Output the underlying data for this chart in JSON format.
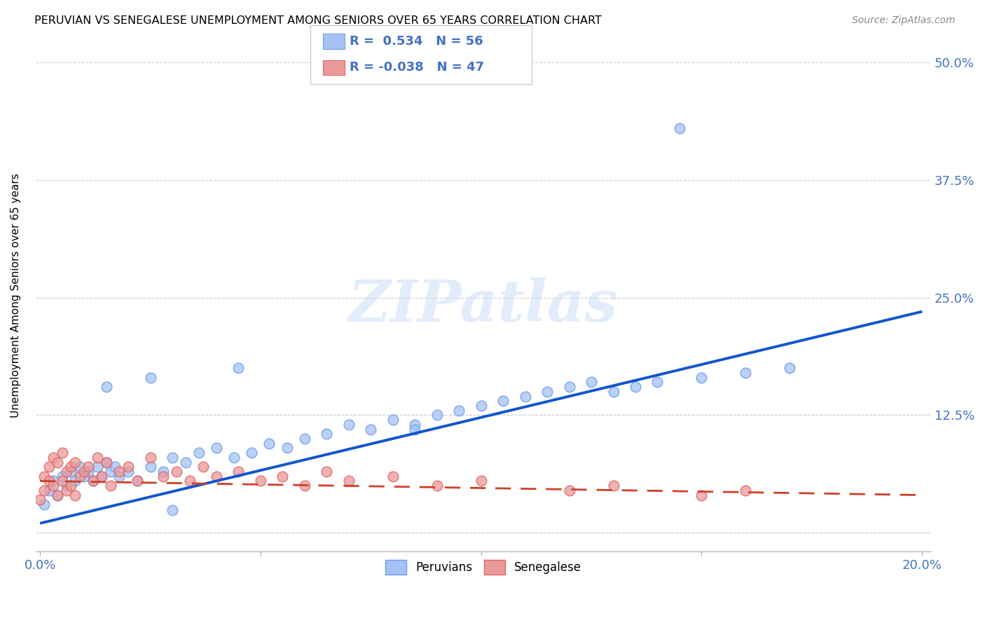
{
  "title": "PERUVIAN VS SENEGALESE UNEMPLOYMENT AMONG SENIORS OVER 65 YEARS CORRELATION CHART",
  "source": "Source: ZipAtlas.com",
  "tick_color": "#4472c4",
  "ylabel": "Unemployment Among Seniors over 65 years",
  "xlim": [
    -0.001,
    0.202
  ],
  "ylim": [
    -0.02,
    0.525
  ],
  "x_ticks": [
    0.0,
    0.05,
    0.1,
    0.15,
    0.2
  ],
  "x_tick_labels": [
    "0.0%",
    "",
    "",
    "",
    "20.0%"
  ],
  "y_ticks": [
    0.0,
    0.125,
    0.25,
    0.375,
    0.5
  ],
  "y_tick_labels": [
    "",
    "12.5%",
    "25.0%",
    "37.5%",
    "50.0%"
  ],
  "peruvian_color": "#a4c2f4",
  "peruvian_edge_color": "#6d9eeb",
  "senegalese_color": "#ea9999",
  "senegalese_edge_color": "#e06666",
  "peruvian_line_color": "#1155cc",
  "senegalese_line_color": "#cc4125",
  "R_peruvian": 0.534,
  "N_peruvian": 56,
  "R_senegalese": -0.038,
  "N_senegalese": 47,
  "watermark": "ZIPatlas",
  "peruvian_x": [
    0.001,
    0.002,
    0.003,
    0.004,
    0.005,
    0.006,
    0.007,
    0.008,
    0.009,
    0.01,
    0.011,
    0.012,
    0.013,
    0.014,
    0.015,
    0.016,
    0.017,
    0.018,
    0.02,
    0.022,
    0.025,
    0.028,
    0.03,
    0.033,
    0.036,
    0.04,
    0.044,
    0.048,
    0.052,
    0.056,
    0.06,
    0.065,
    0.07,
    0.075,
    0.08,
    0.085,
    0.09,
    0.095,
    0.1,
    0.105,
    0.11,
    0.115,
    0.12,
    0.125,
    0.13,
    0.135,
    0.14,
    0.15,
    0.16,
    0.17,
    0.015,
    0.025,
    0.03,
    0.045,
    0.085,
    0.145
  ],
  "peruvian_y": [
    0.03,
    0.045,
    0.055,
    0.04,
    0.06,
    0.05,
    0.065,
    0.055,
    0.07,
    0.06,
    0.065,
    0.055,
    0.07,
    0.06,
    0.075,
    0.065,
    0.07,
    0.06,
    0.065,
    0.055,
    0.07,
    0.065,
    0.08,
    0.075,
    0.085,
    0.09,
    0.08,
    0.085,
    0.095,
    0.09,
    0.1,
    0.105,
    0.115,
    0.11,
    0.12,
    0.115,
    0.125,
    0.13,
    0.135,
    0.14,
    0.145,
    0.15,
    0.155,
    0.16,
    0.15,
    0.155,
    0.16,
    0.165,
    0.17,
    0.175,
    0.155,
    0.165,
    0.024,
    0.175,
    0.11,
    0.43
  ],
  "senegalese_x": [
    0.0,
    0.001,
    0.001,
    0.002,
    0.002,
    0.003,
    0.003,
    0.004,
    0.004,
    0.005,
    0.005,
    0.006,
    0.006,
    0.007,
    0.007,
    0.008,
    0.008,
    0.009,
    0.01,
    0.011,
    0.012,
    0.013,
    0.014,
    0.015,
    0.016,
    0.018,
    0.02,
    0.022,
    0.025,
    0.028,
    0.031,
    0.034,
    0.037,
    0.04,
    0.045,
    0.05,
    0.055,
    0.06,
    0.065,
    0.07,
    0.08,
    0.09,
    0.1,
    0.12,
    0.13,
    0.15,
    0.16
  ],
  "senegalese_y": [
    0.035,
    0.06,
    0.045,
    0.07,
    0.055,
    0.08,
    0.05,
    0.075,
    0.04,
    0.085,
    0.055,
    0.065,
    0.045,
    0.07,
    0.05,
    0.075,
    0.04,
    0.06,
    0.065,
    0.07,
    0.055,
    0.08,
    0.06,
    0.075,
    0.05,
    0.065,
    0.07,
    0.055,
    0.08,
    0.06,
    0.065,
    0.055,
    0.07,
    0.06,
    0.065,
    0.055,
    0.06,
    0.05,
    0.065,
    0.055,
    0.06,
    0.05,
    0.055,
    0.045,
    0.05,
    0.04,
    0.045
  ],
  "blue_line_x": [
    0.0,
    0.2
  ],
  "blue_line_y": [
    0.01,
    0.235
  ],
  "pink_line_x": [
    0.0,
    0.2
  ],
  "pink_line_y": [
    0.055,
    0.04
  ]
}
